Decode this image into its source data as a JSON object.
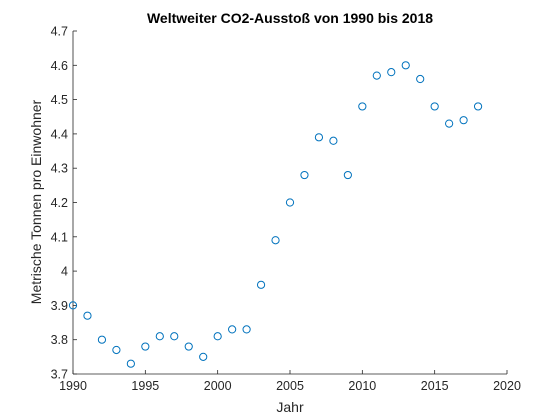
{
  "chart_data": {
    "type": "scatter",
    "title": "Weltweiter CO2-Ausstoß von 1990 bis 2018",
    "xlabel": "Jahr",
    "ylabel": "Metrische Tonnen pro Einwohner",
    "xlim": [
      1990,
      2020
    ],
    "ylim": [
      3.7,
      4.7
    ],
    "xticks": [
      1990,
      1995,
      2000,
      2005,
      2010,
      2015,
      2020
    ],
    "yticks": [
      "3.7",
      "3.8",
      "3.9",
      "4",
      "4.1",
      "4.2",
      "4.3",
      "4.4",
      "4.5",
      "4.6",
      "4.7"
    ],
    "grid": false,
    "marker": "open-circle",
    "color": "#0072BD",
    "x": [
      1990,
      1991,
      1992,
      1993,
      1994,
      1995,
      1996,
      1997,
      1998,
      1999,
      2000,
      2001,
      2002,
      2003,
      2004,
      2005,
      2006,
      2007,
      2008,
      2009,
      2010,
      2011,
      2012,
      2013,
      2014,
      2015,
      2016,
      2017,
      2018
    ],
    "y": [
      3.9,
      3.87,
      3.8,
      3.77,
      3.73,
      3.78,
      3.81,
      3.81,
      3.78,
      3.75,
      3.81,
      3.83,
      3.83,
      3.96,
      4.09,
      4.2,
      4.28,
      4.39,
      4.38,
      4.28,
      4.48,
      4.57,
      4.58,
      4.6,
      4.56,
      4.48,
      4.43,
      4.44,
      4.48
    ]
  }
}
